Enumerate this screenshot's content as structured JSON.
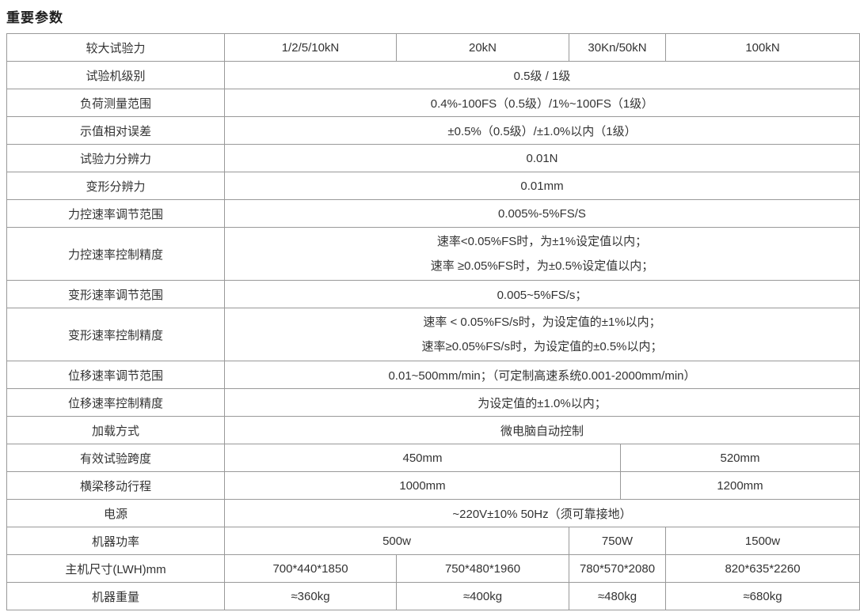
{
  "title": "重要参数",
  "table": {
    "rows": [
      {
        "label": "较大试验力",
        "cells": [
          {
            "text": "1/2/5/10kN",
            "span": 1
          },
          {
            "text": "20kN",
            "span": 1
          },
          {
            "text": "30Kn/50kN",
            "span": 2
          },
          {
            "text": "100kN",
            "span": 1
          }
        ]
      },
      {
        "label": "试验机级别",
        "cells": [
          {
            "text": "0.5级 / 1级",
            "span": 5
          }
        ]
      },
      {
        "label": "负荷测量范围",
        "cells": [
          {
            "text": "0.4%-100FS（0.5级）/1%~100FS（1级）",
            "span": 5
          }
        ]
      },
      {
        "label": "示值相对误差",
        "cells": [
          {
            "text": "±0.5%（0.5级）/±1.0%以内（1级）",
            "span": 5
          }
        ]
      },
      {
        "label": "试验力分辨力",
        "cells": [
          {
            "text": "0.01N",
            "span": 5
          }
        ]
      },
      {
        "label": "变形分辨力",
        "cells": [
          {
            "text": "0.01mm",
            "span": 5
          }
        ]
      },
      {
        "label": "力控速率调节范围",
        "cells": [
          {
            "text": "0.005%-5%FS/S",
            "span": 5
          }
        ]
      },
      {
        "label": "力控速率控制精度",
        "cells": [
          {
            "text": "速率<0.05%FS时，为±1%设定值以内；\n速率 ≥0.05%FS时，为±0.5%设定值以内；",
            "span": 5,
            "multiline": true
          }
        ]
      },
      {
        "label": "变形速率调节范围",
        "cells": [
          {
            "text": "0.005~5%FS/s；",
            "span": 5
          }
        ]
      },
      {
        "label": "变形速率控制精度",
        "cells": [
          {
            "text": "速率 < 0.05%FS/s时，为设定值的±1%以内；\n速率≥0.05%FS/s时，为设定值的±0.5%以内；",
            "span": 5,
            "multiline": true
          }
        ]
      },
      {
        "label": "位移速率调节范围",
        "cells": [
          {
            "text": "0.01~500mm/min；（可定制高速系统0.001-2000mm/min）",
            "span": 5
          }
        ]
      },
      {
        "label": "位移速率控制精度",
        "cells": [
          {
            "text": "为设定值的±1.0%以内；",
            "span": 5
          }
        ]
      },
      {
        "label": "加载方式",
        "cells": [
          {
            "text": "微电脑自动控制",
            "span": 5
          }
        ]
      },
      {
        "label": "有效试验跨度",
        "cells": [
          {
            "text": "450mm",
            "span": 3
          },
          {
            "text": "520mm",
            "span": 2
          }
        ]
      },
      {
        "label": "横梁移动行程",
        "cells": [
          {
            "text": "1000mm",
            "span": 3
          },
          {
            "text": "1200mm",
            "span": 2
          }
        ]
      },
      {
        "label": "电源",
        "cells": [
          {
            "text": "~220V±10% 50Hz（须可靠接地）",
            "span": 5
          }
        ]
      },
      {
        "label": "机器功率",
        "cells": [
          {
            "text": "500w",
            "span": 2
          },
          {
            "text": "750W",
            "span": 2
          },
          {
            "text": "1500w",
            "span": 1
          }
        ]
      },
      {
        "label": "主机尺寸(LWH)mm",
        "cells": [
          {
            "text": "700*440*1850",
            "span": 1
          },
          {
            "text": "750*480*1960",
            "span": 1
          },
          {
            "text": "780*570*2080",
            "span": 2
          },
          {
            "text": "820*635*2260",
            "span": 1
          }
        ]
      },
      {
        "label": "机器重量",
        "cells": [
          {
            "text": "≈360kg",
            "span": 1
          },
          {
            "text": "≈400kg",
            "span": 1
          },
          {
            "text": "≈480kg",
            "span": 2
          },
          {
            "text": "≈680kg",
            "span": 1
          }
        ]
      }
    ]
  },
  "colors": {
    "border": "#999999",
    "text": "#333333",
    "title_text": "#1f1f1f",
    "background": "#ffffff"
  }
}
